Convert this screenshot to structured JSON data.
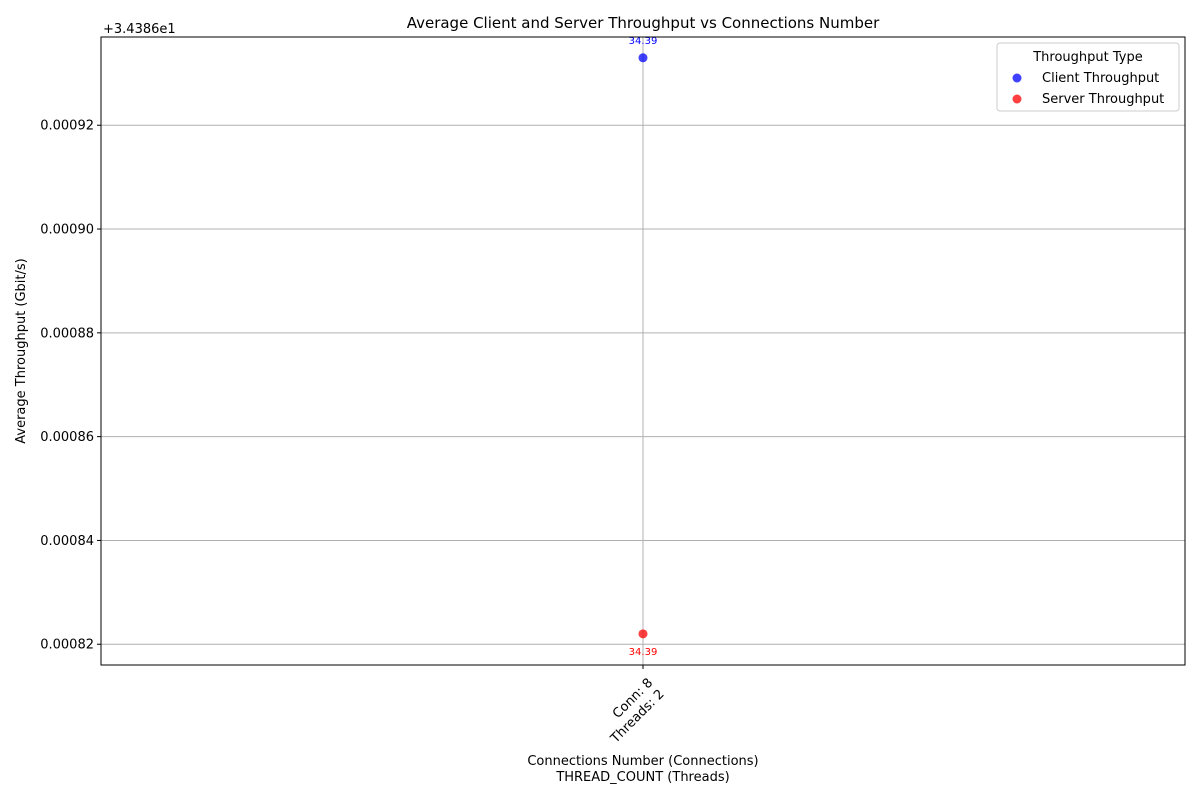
{
  "chart_data": {
    "type": "scatter",
    "title": "Average Client and Server Throughput vs Connections Number",
    "xlabel_lines": [
      "Connections Number (Connections)",
      "THREAD_COUNT (Threads)"
    ],
    "ylabel": "Average Throughput (Gbit/s)",
    "y_offset_label": "+3.4386e1",
    "y_offset": 34.386,
    "ylim": [
      0.000816,
      0.000937
    ],
    "yticks": [
      {
        "value": 0.00082,
        "label": "0.00082"
      },
      {
        "value": 0.00084,
        "label": "0.00084"
      },
      {
        "value": 0.00086,
        "label": "0.00086"
      },
      {
        "value": 0.00088,
        "label": "0.00088"
      },
      {
        "value": 0.0009,
        "label": "0.00090"
      },
      {
        "value": 0.00092,
        "label": "0.00092"
      }
    ],
    "xlim": [
      -1,
      1
    ],
    "xticks": [
      {
        "value": 0,
        "lines": [
          "Conn: 8",
          "Threads: 2"
        ]
      }
    ],
    "grid": true,
    "legend": {
      "title": "Throughput Type",
      "position": "top-right"
    },
    "series": [
      {
        "name": "Client Throughput",
        "color": "#0000ff",
        "points": [
          {
            "x": 0,
            "y": 0.000933,
            "label": "34.39"
          }
        ]
      },
      {
        "name": "Server Throughput",
        "color": "#ff0000",
        "points": [
          {
            "x": 0,
            "y": 0.000822,
            "label": "34.39"
          }
        ]
      }
    ]
  }
}
